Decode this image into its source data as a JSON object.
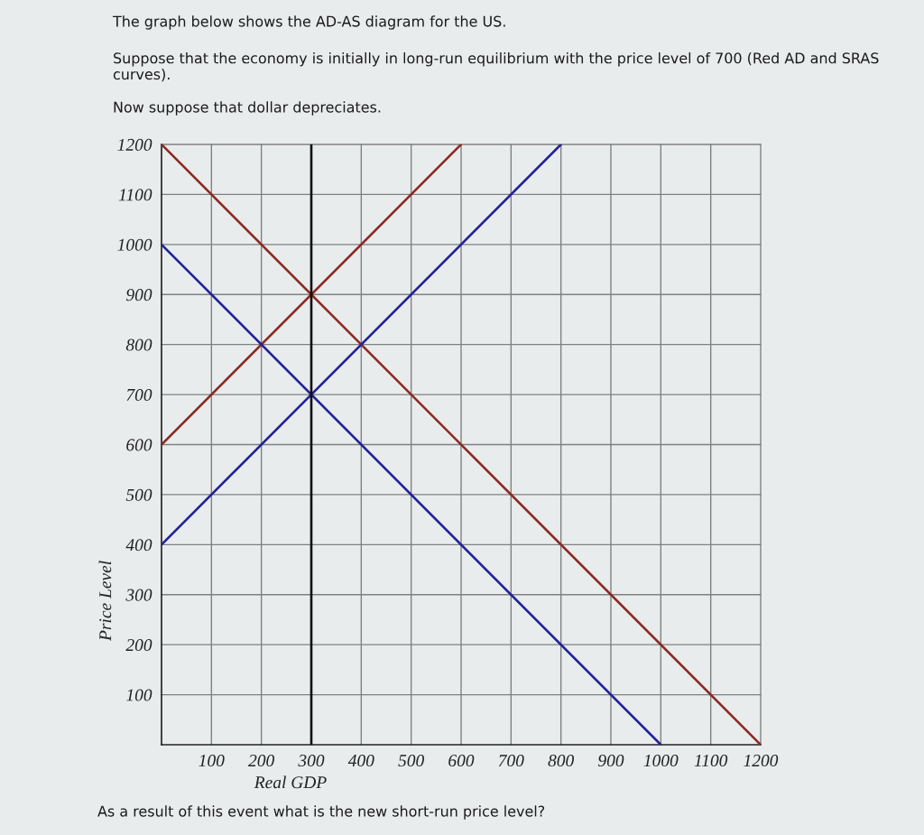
{
  "chart_data": {
    "type": "line",
    "title": "The graph below shows the AD-AS diagram for the US.",
    "subtitle": "Suppose that the economy is initially in long-run equilibrium with the price level of 700 (Red AD and SRAS curves).",
    "annotations": [
      "Now suppose that dollar depreciates.",
      "As a result of this event what is the new short-run price level?"
    ],
    "xlabel": "Real GDP",
    "ylabel": "Price Level",
    "xlim": [
      0,
      1200
    ],
    "ylim": [
      0,
      1200
    ],
    "xticks": [
      100,
      200,
      300,
      400,
      500,
      600,
      700,
      800,
      900,
      1000,
      1100,
      1200
    ],
    "yticks": [
      100,
      200,
      300,
      400,
      500,
      600,
      700,
      800,
      900,
      1000,
      1100,
      1200
    ],
    "grid": true,
    "line_style": "solid",
    "series": [
      {
        "color": "#8c2a22",
        "x": [
          0,
          1200
        ],
        "values": [
          1200,
          0
        ]
      },
      {
        "color": "#8c2a22",
        "x": [
          0,
          600
        ],
        "values": [
          600,
          1200
        ]
      },
      {
        "color": "#24229a",
        "x": [
          0,
          1000
        ],
        "values": [
          1000,
          0
        ]
      },
      {
        "color": "#24229a",
        "x": [
          0,
          800
        ],
        "values": [
          400,
          1200
        ]
      },
      {
        "color": "#111111",
        "x": [
          300,
          300
        ],
        "values": [
          0,
          1200
        ]
      }
    ]
  }
}
